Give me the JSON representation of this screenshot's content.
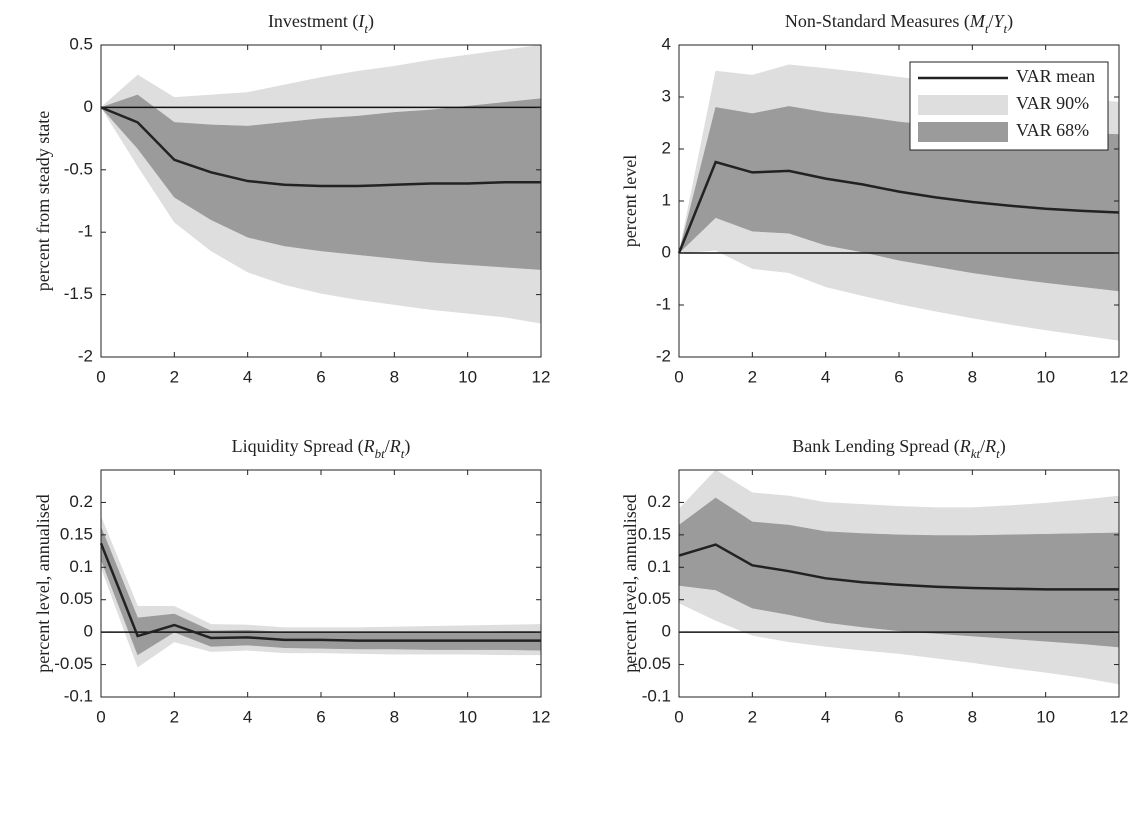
{
  "chart_data": [
    {
      "type": "line",
      "title": [
        {
          "text": "Investment (",
          "style": "roman"
        },
        {
          "text": "I",
          "style": "italic"
        },
        {
          "text": "t",
          "style": "sub"
        },
        {
          "text": ")",
          "style": "roman"
        }
      ],
      "y_label": "percent from steady state",
      "x": [
        0,
        1,
        2,
        3,
        4,
        5,
        6,
        7,
        8,
        9,
        10,
        11,
        12
      ],
      "xlim": [
        0,
        12
      ],
      "xticks": [
        0,
        2,
        4,
        6,
        8,
        10,
        12
      ],
      "ylim": [
        -2,
        0.5
      ],
      "yticks": [
        -2,
        -1.5,
        -1,
        -0.5,
        0,
        0.5
      ],
      "hline": 0,
      "legend": false,
      "series": [
        {
          "color": "#222222",
          "values": [
            0,
            -0.12,
            -0.42,
            -0.52,
            -0.59,
            -0.62,
            -0.63,
            -0.63,
            -0.62,
            -0.61,
            -0.61,
            -0.6,
            -0.6
          ]
        },
        {
          "type": "band",
          "color": "#dedede",
          "upper": [
            0,
            0.26,
            0.08,
            0.1,
            0.12,
            0.18,
            0.24,
            0.29,
            0.33,
            0.38,
            0.42,
            0.46,
            0.5
          ],
          "lower": [
            0,
            -0.47,
            -0.92,
            -1.15,
            -1.32,
            -1.42,
            -1.49,
            -1.54,
            -1.58,
            -1.62,
            -1.65,
            -1.68,
            -1.73
          ]
        },
        {
          "type": "band",
          "color": "#9b9b9b",
          "upper": [
            0,
            0.1,
            -0.12,
            -0.14,
            -0.15,
            -0.12,
            -0.09,
            -0.07,
            -0.04,
            -0.02,
            0.01,
            0.04,
            0.07
          ],
          "lower": [
            0,
            -0.33,
            -0.72,
            -0.9,
            -1.04,
            -1.11,
            -1.15,
            -1.18,
            -1.21,
            -1.24,
            -1.26,
            -1.28,
            -1.3
          ]
        }
      ]
    },
    {
      "type": "line",
      "title": [
        {
          "text": "Non-Standard Measures (",
          "style": "roman"
        },
        {
          "text": "M",
          "style": "italic"
        },
        {
          "text": "t",
          "style": "sub"
        },
        {
          "text": "/",
          "style": "roman"
        },
        {
          "text": "Y",
          "style": "italic"
        },
        {
          "text": "t",
          "style": "sub"
        },
        {
          "text": ")",
          "style": "roman"
        }
      ],
      "y_label": "percent level",
      "x": [
        0,
        1,
        2,
        3,
        4,
        5,
        6,
        7,
        8,
        9,
        10,
        11,
        12
      ],
      "xlim": [
        0,
        12
      ],
      "xticks": [
        0,
        2,
        4,
        6,
        8,
        10,
        12
      ],
      "ylim": [
        -2,
        4
      ],
      "yticks": [
        -2,
        -1,
        0,
        1,
        2,
        3,
        4
      ],
      "hline": 0,
      "legend": "upper right",
      "series": [
        {
          "name": "VAR mean",
          "color": "#222222",
          "values": [
            0,
            1.75,
            1.55,
            1.58,
            1.43,
            1.32,
            1.18,
            1.07,
            0.98,
            0.91,
            0.85,
            0.81,
            0.78
          ]
        },
        {
          "name": "VAR 90%",
          "type": "band",
          "color": "#dedede",
          "upper": [
            0,
            3.5,
            3.42,
            3.62,
            3.55,
            3.47,
            3.38,
            3.3,
            3.2,
            3.12,
            3.04,
            2.97,
            2.9
          ],
          "lower": [
            0,
            0.05,
            -0.3,
            -0.38,
            -0.65,
            -0.82,
            -0.98,
            -1.12,
            -1.25,
            -1.37,
            -1.48,
            -1.58,
            -1.68
          ]
        },
        {
          "name": "VAR 68%",
          "type": "band",
          "color": "#9b9b9b",
          "upper": [
            0,
            2.8,
            2.68,
            2.82,
            2.7,
            2.62,
            2.52,
            2.45,
            2.4,
            2.35,
            2.32,
            2.3,
            2.28
          ],
          "lower": [
            0,
            0.68,
            0.42,
            0.38,
            0.15,
            0.02,
            -0.14,
            -0.26,
            -0.38,
            -0.48,
            -0.57,
            -0.65,
            -0.73
          ]
        }
      ]
    },
    {
      "type": "line",
      "title": [
        {
          "text": "Liquidity Spread (",
          "style": "roman"
        },
        {
          "text": "R",
          "style": "italic"
        },
        {
          "text": "bt",
          "style": "sub"
        },
        {
          "text": "/",
          "style": "roman"
        },
        {
          "text": "R",
          "style": "italic"
        },
        {
          "text": "t",
          "style": "sub"
        },
        {
          "text": ")",
          "style": "roman"
        }
      ],
      "y_label": "percent level, annualised",
      "x": [
        0,
        1,
        2,
        3,
        4,
        5,
        6,
        7,
        8,
        9,
        10,
        11,
        12
      ],
      "xlim": [
        0,
        12
      ],
      "xticks": [
        0,
        2,
        4,
        6,
        8,
        10,
        12
      ],
      "ylim": [
        -0.1,
        0.25
      ],
      "yticks": [
        -0.1,
        -0.05,
        0,
        0.05,
        0.1,
        0.15,
        0.2
      ],
      "hline": 0,
      "legend": false,
      "series": [
        {
          "color": "#222222",
          "values": [
            0.137,
            -0.006,
            0.011,
            -0.009,
            -0.008,
            -0.012,
            -0.012,
            -0.013,
            -0.013,
            -0.013,
            -0.013,
            -0.013,
            -0.013
          ]
        },
        {
          "type": "band",
          "color": "#dedede",
          "upper": [
            0.178,
            0.04,
            0.04,
            0.012,
            0.011,
            0.007,
            0.007,
            0.007,
            0.008,
            0.009,
            0.01,
            0.011,
            0.012
          ],
          "lower": [
            0.1,
            -0.054,
            -0.015,
            -0.03,
            -0.028,
            -0.032,
            -0.032,
            -0.033,
            -0.034,
            -0.034,
            -0.034,
            -0.035,
            -0.035
          ]
        },
        {
          "type": "band",
          "color": "#9b9b9b",
          "upper": [
            0.162,
            0.022,
            0.028,
            0.002,
            0.003,
            0,
            0,
            0,
            0,
            0,
            0,
            0.001,
            0.001
          ],
          "lower": [
            0.112,
            -0.035,
            0,
            -0.022,
            -0.02,
            -0.024,
            -0.025,
            -0.026,
            -0.026,
            -0.027,
            -0.027,
            -0.027,
            -0.028
          ]
        }
      ]
    },
    {
      "type": "line",
      "title": [
        {
          "text": "Bank Lending Spread (",
          "style": "roman"
        },
        {
          "text": "R",
          "style": "italic"
        },
        {
          "text": "kt",
          "style": "sub"
        },
        {
          "text": "/",
          "style": "roman"
        },
        {
          "text": "R",
          "style": "italic"
        },
        {
          "text": "t",
          "style": "sub"
        },
        {
          "text": ")",
          "style": "roman"
        }
      ],
      "y_label": "percent level, annualised",
      "x": [
        0,
        1,
        2,
        3,
        4,
        5,
        6,
        7,
        8,
        9,
        10,
        11,
        12
      ],
      "xlim": [
        0,
        12
      ],
      "xticks": [
        0,
        2,
        4,
        6,
        8,
        10,
        12
      ],
      "ylim": [
        -0.1,
        0.25
      ],
      "yticks": [
        -0.1,
        -0.05,
        0,
        0.05,
        0.1,
        0.15,
        0.2
      ],
      "hline": 0,
      "legend": false,
      "series": [
        {
          "color": "#222222",
          "values": [
            0.118,
            0.135,
            0.103,
            0.094,
            0.083,
            0.077,
            0.073,
            0.07,
            0.068,
            0.067,
            0.066,
            0.066,
            0.066
          ]
        },
        {
          "type": "band",
          "color": "#dedede",
          "upper": [
            0.19,
            0.25,
            0.215,
            0.21,
            0.2,
            0.197,
            0.194,
            0.192,
            0.192,
            0.195,
            0.199,
            0.204,
            0.21
          ],
          "lower": [
            0.045,
            0.018,
            -0.005,
            -0.015,
            -0.022,
            -0.028,
            -0.033,
            -0.04,
            -0.047,
            -0.055,
            -0.062,
            -0.07,
            -0.08
          ]
        },
        {
          "type": "band",
          "color": "#9b9b9b",
          "upper": [
            0.165,
            0.207,
            0.17,
            0.165,
            0.155,
            0.152,
            0.15,
            0.149,
            0.149,
            0.15,
            0.151,
            0.152,
            0.153
          ],
          "lower": [
            0.072,
            0.065,
            0.037,
            0.027,
            0.015,
            0.008,
            0.002,
            -0.002,
            -0.006,
            -0.01,
            -0.014,
            -0.018,
            -0.023
          ]
        }
      ]
    }
  ]
}
